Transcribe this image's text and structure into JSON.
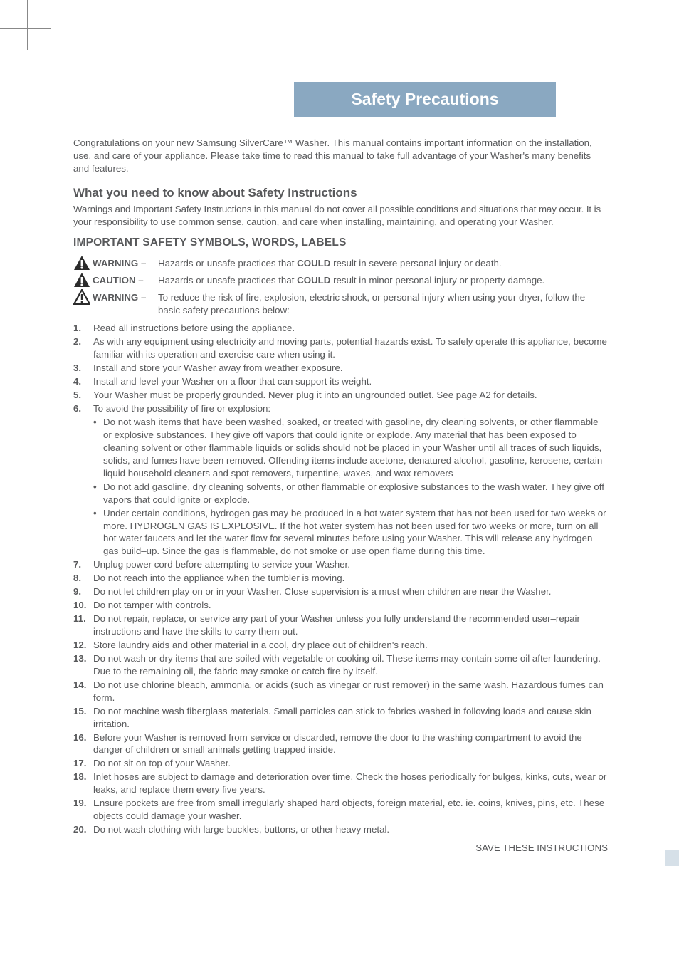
{
  "title": "Safety Precautions",
  "intro": "Congratulations on your new Samsung SilverCare™ Washer. This manual contains important information on the installation, use, and care of your appliance. Please take time to read this manual to take full advantage of your Washer's many benefits and features.",
  "section1_heading": "What you need to know about Safety Instructions",
  "section1_body": "Warnings and Important Safety Instructions in this manual do not cover all possible conditions and situations that may occur. It is your responsibility to use common sense, caution, and care when installing, maintaining, and operating your Washer.",
  "section2_heading": "IMPORTANT SAFETY SYMBOLS, WORDS, LABELS",
  "symbols": [
    {
      "icon_fill": "#2b2b2b",
      "label": "WARNING –",
      "text_pre": "Hazards or unsafe practices that ",
      "text_bold": "COULD",
      "text_post": " result in severe personal injury or death."
    },
    {
      "icon_fill": "#2b2b2b",
      "label": "CAUTION –",
      "text_pre": "Hazards or unsafe practices that ",
      "text_bold": "COULD",
      "text_post": " result in minor personal injury or property damage."
    },
    {
      "icon_fill": "#2b2b2b",
      "label": "WARNING –",
      "text_pre": "To reduce the risk of fire, explosion, electric shock, or personal injury when using your dryer, follow the basic safety precautions below:",
      "text_bold": "",
      "text_post": ""
    }
  ],
  "list_keys": [
    "i1",
    "i2",
    "i3",
    "i4",
    "i5",
    "i6",
    "i7",
    "i8",
    "i9",
    "i10",
    "i11",
    "i12",
    "i13",
    "i14",
    "i15",
    "i16",
    "i17",
    "i18",
    "i19",
    "i20"
  ],
  "items": {
    "i1": "Read all instructions before using the appliance.",
    "i2": "As with any equipment using electricity and moving parts, potential hazards exist. To safely operate this appliance, become familiar with its operation and exercise care when using it.",
    "i3": "Install and store your Washer away from weather exposure.",
    "i4": "Install and level your Washer on a floor that can support its weight.",
    "i5": "Your Washer must be properly grounded. Never plug it into an ungrounded outlet. See page A2 for details.",
    "i6": "To avoid the possibility of fire or explosion:",
    "i6_sub": [
      "Do not wash items that have been washed, soaked, or treated with gasoline, dry cleaning solvents, or other flammable or explosive substances. They give off vapors that could ignite or explode. Any material that has been exposed to cleaning solvent or other flammable liquids or solids should not be placed in your Washer until all traces of such liquids, solids, and fumes have been removed. Offending items include acetone, denatured alcohol, gasoline, kerosene, certain liquid household cleaners and spot removers, turpentine, waxes, and wax removers",
      "Do not add gasoline, dry cleaning solvents, or other flammable or explosive substances to the wash water. They give off vapors that could ignite or explode.",
      "Under certain conditions, hydrogen gas may be produced in a hot water system that has not been used for two weeks or more. HYDROGEN GAS IS EXPLOSIVE. If the hot water system has not been used for two weeks or more, turn on all hot water faucets and let the water flow for several minutes before using your Washer. This will release any hydrogen gas build–up. Since the gas is flammable, do not smoke or use open flame during this time."
    ],
    "i7": "Unplug power cord before attempting to service your Washer.",
    "i8": "Do not reach into the appliance when the tumbler is moving.",
    "i9": "Do not let children play on or in your Washer. Close supervision is a must when children are near the Washer.",
    "i10": "Do not tamper with controls.",
    "i11": "Do not repair, replace, or service any part of your Washer unless you fully understand the recommended user–repair instructions and have the skills to carry them out.",
    "i12": "Store laundry aids and other material in a cool, dry place out of children's reach.",
    "i13": "Do not wash or dry items that are soiled with vegetable or cooking oil. These items may contain some oil after laundering. Due to the remaining oil, the fabric may smoke or catch fire by itself.",
    "i14": "Do not use chlorine bleach, ammonia, or acids (such as vinegar or rust remover) in the same wash. Hazardous fumes can form.",
    "i15": "Do not machine wash fiberglass materials. Small particles can stick to fabrics washed in following loads and cause skin irritation.",
    "i16": "Before your Washer is removed from service or discarded, remove the door to the washing compartment to avoid the danger of children or small animals getting trapped inside.",
    "i17": "Do not sit on top of your Washer.",
    "i18": "Inlet hoses are subject to damage and deterioration over time. Check the hoses periodically for bulges, kinks, cuts, wear or leaks, and replace them every five years.",
    "i19": "Ensure pockets are free from small irregularly shaped hard objects, foreign material, etc. ie. coins, knives, pins, etc. These objects could damage your washer.",
    "i20": "Do not wash clothing with large buckles, buttons, or other heavy metal."
  },
  "save_label": "SAVE THESE INSTRUCTIONS",
  "colors": {
    "title_band_bg": "#8aa8c1",
    "title_band_fg": "#ffffff",
    "body_text": "#58595b",
    "footer_tab": "#d6e0e8",
    "crop_mark": "#888888"
  }
}
